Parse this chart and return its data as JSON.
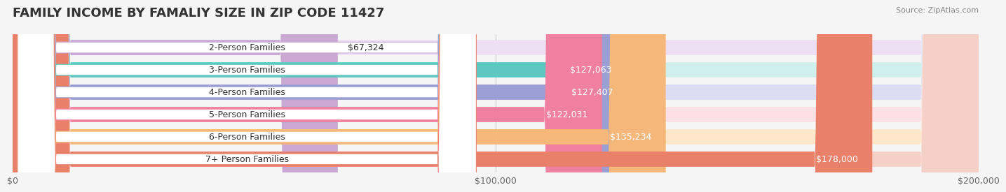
{
  "title": "FAMILY INCOME BY FAMALIY SIZE IN ZIP CODE 11427",
  "source": "Source: ZipAtlas.com",
  "categories": [
    "2-Person Families",
    "3-Person Families",
    "4-Person Families",
    "5-Person Families",
    "6-Person Families",
    "7+ Person Families"
  ],
  "values": [
    67324,
    127063,
    127407,
    122031,
    135234,
    178000
  ],
  "labels": [
    "$67,324",
    "$127,063",
    "$127,407",
    "$122,031",
    "$135,234",
    "$178,000"
  ],
  "bar_colors": [
    "#c9a8d4",
    "#5ec8c0",
    "#9b9fd4",
    "#f080a0",
    "#f5b87a",
    "#e8806a"
  ],
  "bar_bg_colors": [
    "#ede0f5",
    "#d0f0ee",
    "#dcddf5",
    "#fce0e8",
    "#fde8cc",
    "#f5d0c8"
  ],
  "xlim": [
    0,
    200000
  ],
  "xticks": [
    0,
    100000,
    200000
  ],
  "xtick_labels": [
    "$0",
    "$100,000",
    "$200,000"
  ],
  "background_color": "#f5f5f5",
  "bar_height": 0.68,
  "title_fontsize": 13,
  "label_fontsize": 9,
  "tick_fontsize": 9,
  "category_fontsize": 9
}
